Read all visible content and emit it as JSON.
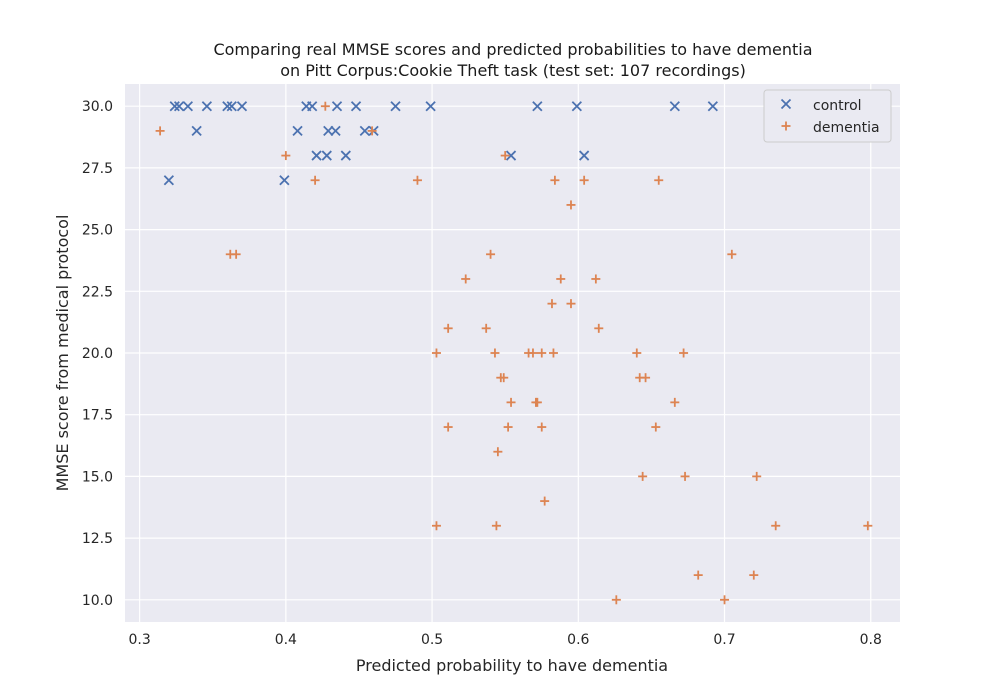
{
  "chart_data": {
    "type": "scatter",
    "title": "Comparing real MMSE scores and predicted probabilities to have dementia",
    "subtitle": "on Pitt Corpus:Cookie Theft task (test set: 107 recordings)",
    "xlabel": "Predicted probability to have dementia",
    "ylabel": "MMSE score from medical protocol",
    "xlim": [
      0.29,
      0.82
    ],
    "ylim": [
      9.1,
      30.9
    ],
    "xticks": [
      "0.3",
      "0.4",
      "0.5",
      "0.6",
      "0.7",
      "0.8"
    ],
    "yticks": [
      "10.0",
      "12.5",
      "15.0",
      "17.5",
      "20.0",
      "22.5",
      "25.0",
      "27.5",
      "30.0"
    ],
    "grid": true,
    "legend_position": "top-right",
    "series": [
      {
        "name": "control",
        "marker": "x",
        "color": "#4c72b0",
        "points": [
          [
            0.32,
            27
          ],
          [
            0.324,
            30
          ],
          [
            0.327,
            30
          ],
          [
            0.333,
            30
          ],
          [
            0.339,
            29
          ],
          [
            0.346,
            30
          ],
          [
            0.36,
            30
          ],
          [
            0.363,
            30
          ],
          [
            0.37,
            30
          ],
          [
            0.399,
            27
          ],
          [
            0.408,
            29
          ],
          [
            0.414,
            30
          ],
          [
            0.418,
            30
          ],
          [
            0.421,
            28
          ],
          [
            0.428,
            28
          ],
          [
            0.429,
            29
          ],
          [
            0.434,
            29
          ],
          [
            0.435,
            30
          ],
          [
            0.441,
            28
          ],
          [
            0.448,
            30
          ],
          [
            0.454,
            29
          ],
          [
            0.46,
            29
          ],
          [
            0.475,
            30
          ],
          [
            0.499,
            30
          ],
          [
            0.554,
            28
          ],
          [
            0.572,
            30
          ],
          [
            0.599,
            30
          ],
          [
            0.604,
            28
          ],
          [
            0.666,
            30
          ],
          [
            0.692,
            30
          ]
        ]
      },
      {
        "name": "dementia",
        "marker": "+",
        "color": "#dd8452",
        "points": [
          [
            0.314,
            29
          ],
          [
            0.362,
            24
          ],
          [
            0.366,
            24
          ],
          [
            0.4,
            28
          ],
          [
            0.42,
            27
          ],
          [
            0.427,
            30
          ],
          [
            0.459,
            29
          ],
          [
            0.49,
            27
          ],
          [
            0.503,
            20
          ],
          [
            0.503,
            13
          ],
          [
            0.511,
            21
          ],
          [
            0.511,
            17
          ],
          [
            0.523,
            23
          ],
          [
            0.537,
            21
          ],
          [
            0.54,
            24
          ],
          [
            0.543,
            20
          ],
          [
            0.544,
            13
          ],
          [
            0.545,
            16
          ],
          [
            0.547,
            19
          ],
          [
            0.549,
            19
          ],
          [
            0.55,
            28
          ],
          [
            0.552,
            17
          ],
          [
            0.554,
            18
          ],
          [
            0.566,
            20
          ],
          [
            0.569,
            20
          ],
          [
            0.571,
            18
          ],
          [
            0.572,
            18
          ],
          [
            0.575,
            20
          ],
          [
            0.575,
            17
          ],
          [
            0.577,
            14
          ],
          [
            0.582,
            22
          ],
          [
            0.583,
            20
          ],
          [
            0.584,
            27
          ],
          [
            0.588,
            23
          ],
          [
            0.595,
            26
          ],
          [
            0.595,
            22
          ],
          [
            0.604,
            27
          ],
          [
            0.612,
            23
          ],
          [
            0.614,
            21
          ],
          [
            0.626,
            10
          ],
          [
            0.64,
            20
          ],
          [
            0.642,
            19
          ],
          [
            0.644,
            15
          ],
          [
            0.646,
            19
          ],
          [
            0.653,
            17
          ],
          [
            0.655,
            27
          ],
          [
            0.666,
            18
          ],
          [
            0.672,
            20
          ],
          [
            0.673,
            15
          ],
          [
            0.682,
            11
          ],
          [
            0.7,
            10
          ],
          [
            0.705,
            24
          ],
          [
            0.72,
            11
          ],
          [
            0.722,
            15
          ],
          [
            0.735,
            13
          ],
          [
            0.798,
            13
          ]
        ]
      }
    ]
  }
}
